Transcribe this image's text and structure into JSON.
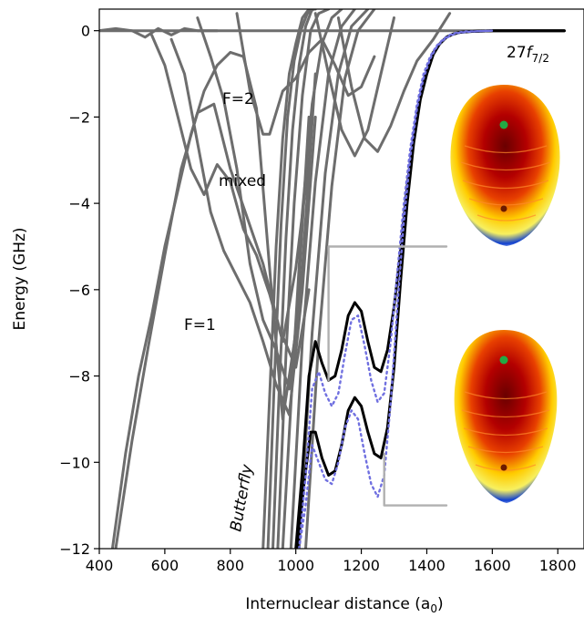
{
  "chart_data": {
    "type": "line",
    "xlabel": "Internuclear distance (a",
    "xlabel_sub": "0",
    "ylabel": "Energy (GHz)",
    "xlim": [
      400,
      1880
    ],
    "ylim": [
      -12,
      0.5
    ],
    "xticks": [
      400,
      600,
      800,
      1000,
      1200,
      1400,
      1600,
      1800
    ],
    "yticks": [
      0,
      -2,
      -4,
      -6,
      -8,
      -10,
      -12
    ],
    "ytick_labels": [
      "0",
      "−2",
      "−4",
      "−6",
      "−8",
      "−10",
      "−12"
    ],
    "grid": false,
    "annotations": {
      "state_main": "27",
      "state_italic": "f",
      "state_sub": "7/2",
      "f2": "F=2",
      "mixed": "mixed",
      "f1": "F=1",
      "butterfly": "Butterfly"
    },
    "series": [
      {
        "style": "gray",
        "x": [
          440,
          480,
          520,
          560,
          600,
          640,
          680,
          720,
          760,
          800,
          840,
          880,
          920,
          960,
          1000,
          1040
        ],
        "y": [
          -12,
          -9.8,
          -8.0,
          -6.6,
          -5.0,
          -3.7,
          -2.4,
          -1.4,
          -0.8,
          -0.5,
          -0.6,
          -1.8,
          -5.5,
          -9.0,
          -7.0,
          -2.0
        ]
      },
      {
        "style": "gray",
        "x": [
          450,
          500,
          550,
          600,
          650,
          700,
          750,
          800,
          850,
          900,
          950,
          1000,
          1040
        ],
        "y": [
          -12,
          -9.5,
          -7.3,
          -5.2,
          -3.2,
          -1.9,
          -1.7,
          -3.2,
          -4.3,
          -5.4,
          -6.9,
          -7.8,
          -6.0
        ]
      },
      {
        "style": "gray",
        "x": [
          560,
          600,
          640,
          680,
          720,
          760,
          800,
          840,
          880,
          920,
          960,
          1000,
          1040
        ],
        "y": [
          -0.1,
          -0.8,
          -2.0,
          -3.2,
          -3.8,
          -3.1,
          -3.5,
          -4.6,
          -5.2,
          -6.1,
          -7.2,
          -5.5,
          -3.0
        ]
      },
      {
        "style": "gray",
        "x": [
          620,
          660,
          700,
          740,
          780,
          820,
          860,
          900,
          940,
          980,
          1020,
          1060
        ],
        "y": [
          -0.2,
          -1.0,
          -2.6,
          -4.2,
          -5.1,
          -5.7,
          -6.3,
          -7.2,
          -8.2,
          -8.9,
          -6.0,
          -2.0
        ]
      },
      {
        "style": "gray",
        "x": [
          700,
          740,
          780,
          820,
          860,
          900,
          940,
          980,
          1020,
          1060
        ],
        "y": [
          0.3,
          -0.6,
          -1.6,
          -3.2,
          -5.4,
          -6.7,
          -7.4,
          -8.3,
          -5.5,
          -1.0
        ]
      },
      {
        "style": "gray",
        "x": [
          820,
          860,
          900,
          920,
          960,
          1000,
          1040,
          1080,
          1120,
          1160,
          1200,
          1240
        ],
        "y": [
          0.4,
          -1.4,
          -2.4,
          -2.4,
          -1.4,
          -1.1,
          -0.5,
          -0.2,
          -0.8,
          -1.5,
          -1.3,
          -0.6
        ]
      },
      {
        "style": "gray",
        "x": [
          1130,
          1170,
          1210,
          1250,
          1290,
          1330,
          1370,
          1420,
          1470
        ],
        "y": [
          0.3,
          -1.3,
          -2.5,
          -2.8,
          -2.2,
          -1.4,
          -0.7,
          -0.2,
          0.4
        ]
      },
      {
        "style": "gray",
        "x": [
          1060,
          1100,
          1140,
          1180,
          1220,
          1260,
          1300
        ],
        "y": [
          0.4,
          -1.0,
          -2.3,
          -2.9,
          -2.3,
          -1.0,
          0.3
        ]
      },
      {
        "style": "gray",
        "x": [
          400,
          450,
          500,
          540,
          580,
          620,
          660,
          700,
          760
        ],
        "y": [
          0.0,
          0.05,
          0.0,
          -0.15,
          0.05,
          -0.1,
          0.05,
          0.0,
          0.0
        ]
      },
      {
        "style": "gray",
        "x": [
          400,
          1820
        ],
        "y": [
          0.0,
          0.0
        ]
      },
      {
        "style": "gray",
        "x": [
          900,
          920,
          940,
          960,
          980,
          1000,
          1020,
          1040,
          1060
        ],
        "y": [
          -12,
          -8.5,
          -5.0,
          -2.5,
          -1.0,
          -0.3,
          0.3,
          0.5,
          0.5
        ]
      },
      {
        "style": "gray",
        "x": [
          915,
          935,
          955,
          975,
          995,
          1015,
          1035,
          1055
        ],
        "y": [
          -12,
          -8.0,
          -4.5,
          -2.0,
          -0.7,
          0.0,
          0.4,
          0.5
        ]
      },
      {
        "style": "gray",
        "x": [
          930,
          950,
          970,
          990,
          1010,
          1030,
          1050
        ],
        "y": [
          -12,
          -8.2,
          -4.8,
          -2.3,
          -0.8,
          0.1,
          0.5
        ]
      },
      {
        "style": "gray",
        "x": [
          945,
          970,
          995,
          1020,
          1045,
          1070,
          1100
        ],
        "y": [
          -12,
          -7.5,
          -4.0,
          -1.5,
          0.0,
          0.4,
          0.5
        ]
      },
      {
        "style": "gray",
        "x": [
          960,
          990,
          1020,
          1050,
          1080,
          1110,
          1140
        ],
        "y": [
          -12,
          -8.0,
          -4.2,
          -1.7,
          -0.3,
          0.3,
          0.5
        ]
      },
      {
        "style": "gray",
        "x": [
          985,
          1020,
          1060,
          1100,
          1140,
          1180
        ],
        "y": [
          -12,
          -7.2,
          -3.5,
          -1.0,
          0.1,
          0.5
        ]
      },
      {
        "style": "gray",
        "x": [
          1010,
          1050,
          1090,
          1130,
          1170,
          1220
        ],
        "y": [
          -12,
          -7.0,
          -3.3,
          -1.0,
          0.1,
          0.5
        ]
      },
      {
        "style": "gray",
        "x": [
          1030,
          1070,
          1110,
          1150,
          1190,
          1240
        ],
        "y": [
          -12,
          -7.2,
          -3.6,
          -1.1,
          0.0,
          0.5
        ]
      },
      {
        "style": "black",
        "x": [
          1000,
          1020,
          1040,
          1060,
          1080,
          1100,
          1120,
          1140,
          1160,
          1180,
          1200,
          1220,
          1240,
          1260,
          1280,
          1300,
          1320,
          1340,
          1360,
          1380,
          1400,
          1420,
          1440,
          1460,
          1480,
          1500,
          1530,
          1560,
          1600,
          1700,
          1820
        ],
        "y": [
          -12.0,
          -10.2,
          -8.0,
          -7.2,
          -7.7,
          -8.1,
          -8.0,
          -7.4,
          -6.6,
          -6.3,
          -6.5,
          -7.2,
          -7.8,
          -7.9,
          -7.4,
          -6.4,
          -5.1,
          -3.6,
          -2.4,
          -1.5,
          -0.9,
          -0.5,
          -0.3,
          -0.15,
          -0.08,
          -0.04,
          -0.02,
          -0.01,
          0.0,
          0.0,
          0.0
        ]
      },
      {
        "style": "black",
        "x": [
          1005,
          1025,
          1045,
          1060,
          1080,
          1100,
          1120,
          1140,
          1160,
          1180,
          1200,
          1220,
          1240,
          1260,
          1280,
          1300,
          1320,
          1340,
          1360,
          1380,
          1400,
          1420,
          1440,
          1460,
          1480,
          1500,
          1530,
          1560,
          1600,
          1700,
          1820
        ],
        "y": [
          -12.0,
          -10.5,
          -9.3,
          -9.3,
          -9.9,
          -10.3,
          -10.2,
          -9.6,
          -8.8,
          -8.5,
          -8.7,
          -9.3,
          -9.8,
          -9.9,
          -9.2,
          -7.8,
          -5.8,
          -4.0,
          -2.6,
          -1.6,
          -1.0,
          -0.55,
          -0.3,
          -0.15,
          -0.08,
          -0.04,
          -0.02,
          -0.01,
          0.0,
          0.0,
          0.0
        ]
      },
      {
        "style": "blue-dotted",
        "x": [
          1010,
          1030,
          1050,
          1070,
          1090,
          1110,
          1130,
          1150,
          1170,
          1190,
          1210,
          1230,
          1250,
          1270,
          1290,
          1310,
          1330,
          1350,
          1370,
          1390,
          1410,
          1430,
          1450,
          1470,
          1490,
          1520,
          1560,
          1600
        ],
        "y": [
          -12.0,
          -10.3,
          -8.3,
          -7.9,
          -8.4,
          -8.7,
          -8.4,
          -7.5,
          -6.7,
          -6.6,
          -7.3,
          -8.1,
          -8.6,
          -8.4,
          -7.2,
          -5.6,
          -4.0,
          -2.7,
          -1.7,
          -1.0,
          -0.6,
          -0.35,
          -0.2,
          -0.1,
          -0.05,
          -0.02,
          -0.01,
          0.0
        ]
      },
      {
        "style": "blue-dotted",
        "x": [
          1010,
          1030,
          1050,
          1070,
          1090,
          1110,
          1130,
          1150,
          1170,
          1190,
          1210,
          1230,
          1250,
          1270,
          1290,
          1310,
          1330,
          1350,
          1370,
          1390,
          1410,
          1430,
          1450,
          1470,
          1490,
          1520,
          1560,
          1600
        ],
        "y": [
          -12.0,
          -11.0,
          -9.6,
          -10.0,
          -10.4,
          -10.5,
          -10.0,
          -9.2,
          -8.8,
          -9.0,
          -9.8,
          -10.5,
          -10.8,
          -10.3,
          -8.6,
          -6.4,
          -4.4,
          -2.9,
          -1.8,
          -1.1,
          -0.65,
          -0.38,
          -0.22,
          -0.12,
          -0.06,
          -0.03,
          -0.01,
          0.0
        ]
      },
      {
        "style": "bracket",
        "x": [
          1100,
          1100,
          1460
        ],
        "y": [
          -8.1,
          -5.0,
          -5.0
        ]
      },
      {
        "style": "bracket",
        "x": [
          1270,
          1270,
          1460
        ],
        "y": [
          -9.8,
          -11.0,
          -11.0
        ]
      }
    ]
  }
}
